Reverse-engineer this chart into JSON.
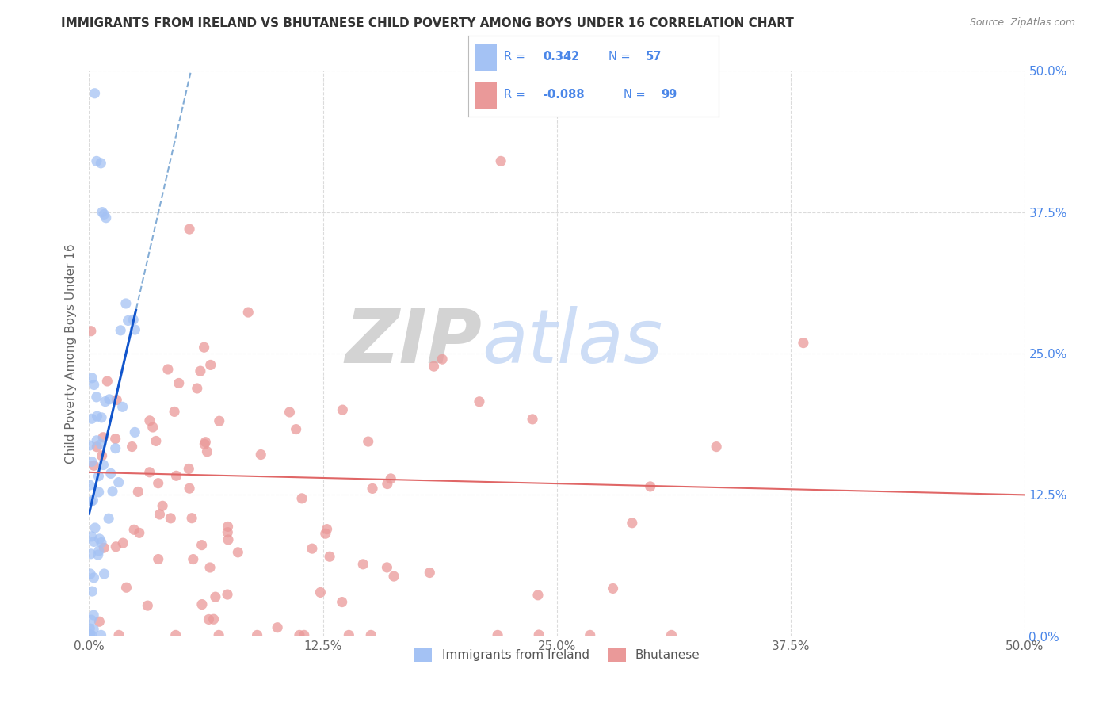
{
  "title": "IMMIGRANTS FROM IRELAND VS BHUTANESE CHILD POVERTY AMONG BOYS UNDER 16 CORRELATION CHART",
  "source": "Source: ZipAtlas.com",
  "ylabel": "Child Poverty Among Boys Under 16",
  "xlim": [
    0.0,
    0.5
  ],
  "ylim": [
    0.0,
    0.5
  ],
  "xtick_vals": [
    0.0,
    0.125,
    0.25,
    0.375,
    0.5
  ],
  "ytick_vals": [
    0.0,
    0.125,
    0.25,
    0.375,
    0.5
  ],
  "ireland_color": "#a4c2f4",
  "bhutan_color": "#ea9999",
  "ireland_line_color": "#1155cc",
  "bhutan_line_color": "#e06666",
  "dashed_line_color": "#6699cc",
  "ireland_R": 0.342,
  "ireland_N": 57,
  "bhutan_R": -0.088,
  "bhutan_N": 99,
  "legend_label_ireland": "Immigrants from Ireland",
  "legend_label_bhutan": "Bhutanese",
  "watermark_ZIP": "ZIP",
  "watermark_atlas": "atlas",
  "watermark_ZIP_color": "#cccccc",
  "watermark_atlas_color": "#c5d8f5",
  "background_color": "#ffffff",
  "grid_color": "#cccccc",
  "right_tick_color": "#4a86e8",
  "legend_text_color": "#4a86e8",
  "legend_r_color_1": "#4a86e8",
  "legend_r_color_2": "#4a86e8"
}
